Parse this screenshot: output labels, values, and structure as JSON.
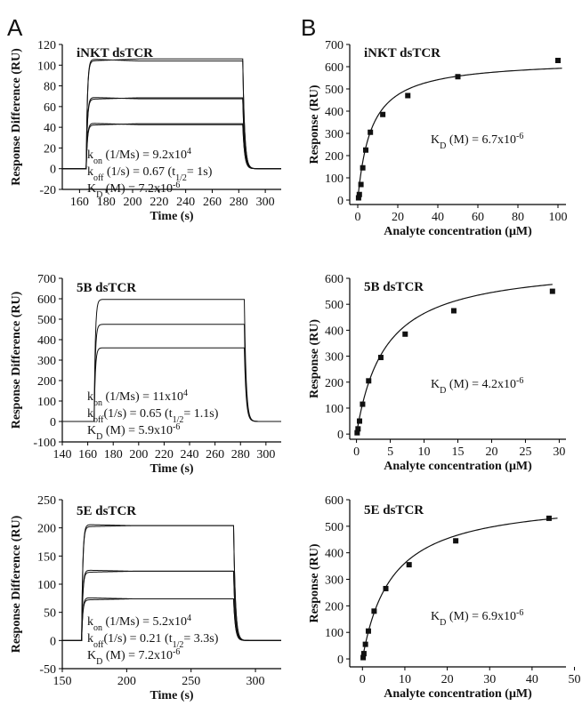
{
  "panel_letters": {
    "A": "A",
    "B": "B"
  },
  "chart_data": [
    {
      "type": "line",
      "title": "iNKT dsTCR",
      "xlabel": "Time (s)",
      "ylabel": "Response Difference (RU)",
      "xlim": [
        147,
        312
      ],
      "ylim": [
        -20,
        120
      ],
      "xticks": [
        160,
        180,
        200,
        220,
        240,
        260,
        280,
        300
      ],
      "yticks": [
        -20,
        0,
        20,
        40,
        60,
        80,
        100,
        120
      ],
      "injection": {
        "start": 165,
        "end": 283
      },
      "series": [
        {
          "plateau": 106,
          "offset": -2
        },
        {
          "plateau": 104,
          "offset": 2
        },
        {
          "plateau": 69,
          "offset": -1.5
        },
        {
          "plateau": 67,
          "offset": 1.5
        },
        {
          "plateau": 44,
          "offset": -1.5
        },
        {
          "plateau": 42,
          "offset": 1.5
        }
      ],
      "annotations": [
        {
          "main": "k",
          "sub": "on",
          "rest": " (1/Ms) = 9.2x10",
          "sup": "4"
        },
        {
          "main": "k",
          "sub": "off",
          "rest": " (1/s) = 0.67 (t",
          "sub2": "1/2",
          "rest2": "= 1s)"
        },
        {
          "main": "K",
          "sub": "D",
          "rest": " (M) = 7.2x10",
          "sup": "-6"
        }
      ]
    },
    {
      "type": "scatter",
      "title": "iNKT dsTCR",
      "xlabel": "Analyte concentration (μM)",
      "ylabel": "Response (RU)",
      "xlim": [
        -4,
        104
      ],
      "ylim": [
        -20,
        700
      ],
      "xticks": [
        0,
        20,
        40,
        60,
        80,
        100
      ],
      "yticks": [
        0,
        100,
        200,
        300,
        400,
        500,
        600,
        700
      ],
      "points": [
        [
          0.4,
          10
        ],
        [
          0.8,
          25
        ],
        [
          1.6,
          70
        ],
        [
          2.5,
          145
        ],
        [
          4,
          225
        ],
        [
          6.3,
          305
        ],
        [
          12.5,
          385
        ],
        [
          25,
          470
        ],
        [
          50,
          555
        ],
        [
          100,
          628
        ]
      ],
      "fit": {
        "rmax": 632,
        "kd": 6.7
      },
      "annotation": {
        "main": "K",
        "sub": "D",
        "rest": " (M) = 6.7x10",
        "sup": "-6"
      }
    },
    {
      "type": "line",
      "title": "5B dsTCR",
      "xlabel": "Time (s)",
      "ylabel": "Response Difference (RU)",
      "xlim": [
        140,
        312
      ],
      "ylim": [
        -100,
        700
      ],
      "xticks": [
        140,
        160,
        180,
        200,
        220,
        240,
        260,
        280,
        300
      ],
      "yticks": [
        -100,
        0,
        100,
        200,
        300,
        400,
        500,
        600,
        700
      ],
      "injection": {
        "start": 165,
        "end": 283
      },
      "series": [
        {
          "plateau": 597,
          "offset": 0
        },
        {
          "plateau": 475,
          "offset": 0
        },
        {
          "plateau": 360,
          "offset": 0
        }
      ],
      "annotations": [
        {
          "main": "k",
          "sub": "on",
          "rest": " (1/Ms) = 11x10",
          "sup": "4"
        },
        {
          "main": "k",
          "sub": "off",
          "rest": "(1/s) = 0.65 (t",
          "sub2": "1/2",
          "rest2": "= 1.1s)"
        },
        {
          "main": "K",
          "sub": "D",
          "rest": " (M) = 5.9x10",
          "sup": "-6"
        }
      ]
    },
    {
      "type": "scatter",
      "title": "5B dsTCR",
      "xlabel": "Analyte concentration (μM)",
      "ylabel": "Response (RU)",
      "xlim": [
        -1,
        31
      ],
      "ylim": [
        -20,
        600
      ],
      "xticks": [
        0,
        5,
        10,
        15,
        20,
        25,
        30
      ],
      "yticks": [
        0,
        100,
        200,
        300,
        400,
        500,
        600
      ],
      "points": [
        [
          0.1,
          5
        ],
        [
          0.23,
          20
        ],
        [
          0.45,
          50
        ],
        [
          0.9,
          115
        ],
        [
          1.8,
          205
        ],
        [
          3.6,
          295
        ],
        [
          7.2,
          385
        ],
        [
          14.4,
          475
        ],
        [
          29,
          550
        ]
      ],
      "fit": {
        "rmax": 660,
        "kd": 4.2
      },
      "annotation": {
        "main": "K",
        "sub": "D",
        "rest": " (M) = 4.2x10",
        "sup": "-6"
      }
    },
    {
      "type": "line",
      "title": "5E dsTCR",
      "xlabel": "Time (s)",
      "ylabel": "Response Difference (RU)",
      "xlim": [
        150,
        320
      ],
      "ylim": [
        -50,
        250
      ],
      "xticks": [
        150,
        200,
        250,
        300
      ],
      "yticks": [
        -50,
        0,
        50,
        100,
        150,
        200,
        250
      ],
      "injection": {
        "start": 165,
        "end": 283
      },
      "series": [
        {
          "plateau": 206,
          "offset": -2
        },
        {
          "plateau": 202,
          "offset": 2
        },
        {
          "plateau": 125,
          "offset": -2
        },
        {
          "plateau": 121,
          "offset": 2
        },
        {
          "plateau": 76,
          "offset": -2
        },
        {
          "plateau": 72,
          "offset": 2
        }
      ],
      "annotations": [
        {
          "main": "k",
          "sub": "on",
          "rest": " (1/Ms) = 5.2x10",
          "sup": "4"
        },
        {
          "main": "k",
          "sub": "off",
          "rest": "(1/s) = 0.21 (t",
          "sub2": "1/2",
          "rest2": "= 3.3s)"
        },
        {
          "main": "K",
          "sub": "D",
          "rest": " (M) = 7.2x10",
          "sup": "-6"
        }
      ]
    },
    {
      "type": "scatter",
      "title": "5E dsTCR",
      "xlabel": "Analyte concentration (μM)",
      "ylabel": "Response (RU)",
      "xlim": [
        -3,
        48
      ],
      "ylim": [
        -30,
        600
      ],
      "xticks": [
        0,
        10,
        20,
        30,
        40,
        50
      ],
      "yticks": [
        0,
        100,
        200,
        300,
        400,
        500,
        600
      ],
      "points": [
        [
          0.17,
          5
        ],
        [
          0.34,
          20
        ],
        [
          0.7,
          55
        ],
        [
          1.4,
          105
        ],
        [
          2.75,
          180
        ],
        [
          5.5,
          265
        ],
        [
          11,
          355
        ],
        [
          22,
          445
        ],
        [
          44,
          530
        ]
      ],
      "fit": {
        "rmax": 610,
        "kd": 6.9
      },
      "annotation": {
        "main": "K",
        "sub": "D",
        "rest": " (M) = 6.9x10",
        "sup": "-6"
      }
    }
  ]
}
